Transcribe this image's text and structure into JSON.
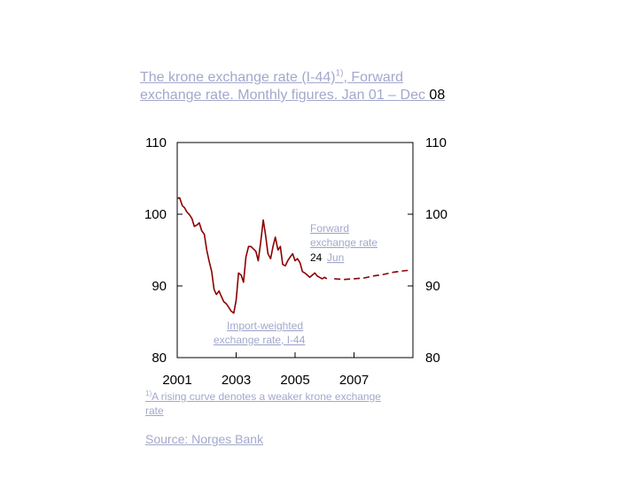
{
  "title": {
    "part1": "The krone exchange rate (I-44)",
    "sup": "1)",
    "part2": ", Forward exchange rate. Monthly figures. Jan 01 – Dec",
    "part3": "08"
  },
  "footnote": {
    "sup": "1)",
    "text": "A rising curve denotes a weaker krone exchange rate"
  },
  "source": {
    "label": "Source:",
    "org": "Norges Bank"
  },
  "colors": {
    "series": "#8b0000",
    "link_text": "#a3a8cc",
    "axis": "#000000"
  },
  "chart_data": {
    "type": "line",
    "title": "The krone exchange rate (I-44), Forward exchange rate. Monthly figures. Jan 01 – Dec 08",
    "xlim": [
      2001,
      2009
    ],
    "ylim": [
      80,
      110
    ],
    "x_ticks": [
      "2001",
      "2003",
      "2005",
      "2007"
    ],
    "x_tick_values": [
      2001,
      2003,
      2005,
      2007
    ],
    "y_ticks_left": [
      "110",
      "100",
      "90",
      "80"
    ],
    "y_ticks_right": [
      "110",
      "100",
      "90",
      "80"
    ],
    "y_tick_values": [
      110,
      100,
      90,
      80
    ],
    "series": [
      {
        "name": "Import-weighted exchange rate, I-44",
        "style": "solid",
        "x": [
          2001.0,
          2001.08,
          2001.17,
          2001.25,
          2001.33,
          2001.42,
          2001.5,
          2001.58,
          2001.67,
          2001.75,
          2001.83,
          2001.92,
          2002.0,
          2002.08,
          2002.17,
          2002.25,
          2002.33,
          2002.42,
          2002.5,
          2002.58,
          2002.67,
          2002.75,
          2002.83,
          2002.92,
          2003.0,
          2003.08,
          2003.17,
          2003.25,
          2003.33,
          2003.42,
          2003.5,
          2003.58,
          2003.67,
          2003.75,
          2003.83,
          2003.92,
          2004.0,
          2004.08,
          2004.17,
          2004.25,
          2004.33,
          2004.42,
          2004.5,
          2004.58,
          2004.67,
          2004.75,
          2004.83,
          2004.92,
          2005.0,
          2005.08,
          2005.17,
          2005.25,
          2005.33,
          2005.42,
          2005.5,
          2005.58,
          2005.67,
          2005.75,
          2005.83,
          2005.92,
          2006.0,
          2006.08
        ],
        "values": [
          102.2,
          102.3,
          101.2,
          100.9,
          100.3,
          99.9,
          99.4,
          98.3,
          98.5,
          98.8,
          97.7,
          97.2,
          95.0,
          93.5,
          92.0,
          89.5,
          88.8,
          89.3,
          88.5,
          87.8,
          87.5,
          87.0,
          86.5,
          86.2,
          88.0,
          91.8,
          91.5,
          90.5,
          94.0,
          95.5,
          95.5,
          95.2,
          94.8,
          93.5,
          96.0,
          99.2,
          97.0,
          94.5,
          93.8,
          95.5,
          96.8,
          95.0,
          95.5,
          93.0,
          92.8,
          93.5,
          94.0,
          94.5,
          93.5,
          93.8,
          93.2,
          92.0,
          91.8,
          91.5,
          91.2,
          91.5,
          91.8,
          91.4,
          91.2,
          91.0,
          91.2,
          91.0
        ]
      },
      {
        "name": "Forward exchange rate 24 Jun",
        "style": "dashed",
        "x": [
          2006.33,
          2006.67,
          2007.0,
          2007.33,
          2007.67,
          2008.0,
          2008.33,
          2008.67,
          2008.92
        ],
        "values": [
          91.0,
          90.9,
          91.0,
          91.1,
          91.4,
          91.6,
          91.9,
          92.1,
          92.2
        ]
      }
    ],
    "annotations": {
      "forward_label_line1": "Forward",
      "forward_label_line2": "exchange rate",
      "forward_label_date_day": "24",
      "forward_label_date_month": "Jun",
      "import_label_line1": "Import-weighted",
      "import_label_line2": "exchange rate, I-44"
    },
    "legend": "inline labels"
  }
}
